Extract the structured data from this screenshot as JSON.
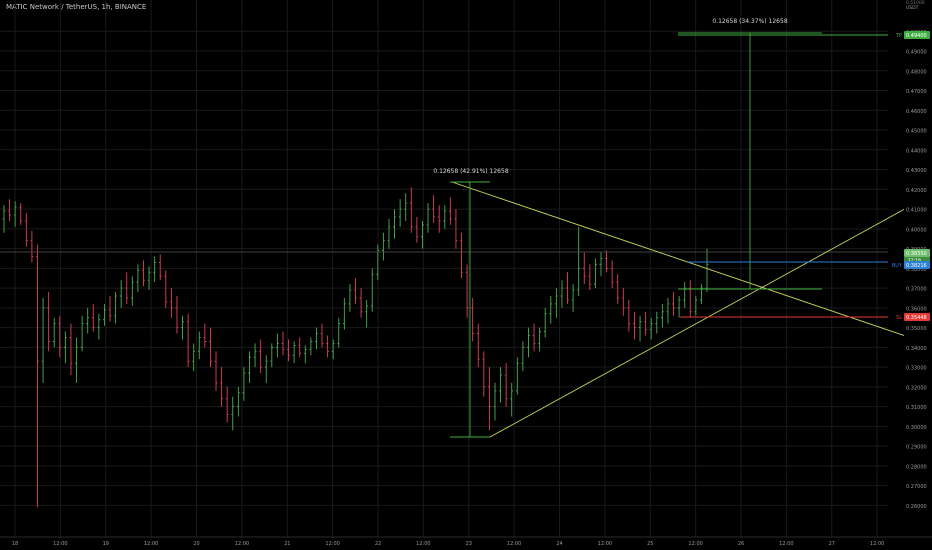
{
  "header": {
    "title": "MATIC Network / TetherUS, 1h, BINANCE"
  },
  "axis_header": {
    "unit_top": "0.51000",
    "unit_label": "USDT"
  },
  "colors": {
    "background": "#000000",
    "grid": "#1a1a1a",
    "up": "#4caf50",
    "down": "#e0405a",
    "trend": "#c9d25a",
    "measure": "#3fae3f",
    "buy": "#2b7fd6",
    "sl": "#e53935"
  },
  "chart_data": {
    "type": "candlestick",
    "interval": "1h",
    "ylim": [
      0.255,
      0.51
    ],
    "y_ticks": [
      "0.50000",
      "0.49000",
      "0.48000",
      "0.47000",
      "0.46000",
      "0.45000",
      "0.44000",
      "0.43000",
      "0.42000",
      "0.41000",
      "0.40000",
      "0.39000",
      "0.38000",
      "0.37000",
      "0.36000",
      "0.35000",
      "0.34000",
      "0.33000",
      "0.32000",
      "0.31000",
      "0.30000",
      "0.29000",
      "0.28000",
      "0.27000",
      "0.26000"
    ],
    "x_ticks": [
      "18",
      "12:00",
      "19",
      "12:00",
      "20",
      "12:00",
      "21",
      "12:00",
      "22",
      "12:00",
      "23",
      "12:00",
      "24",
      "12:00",
      "25",
      "12:00",
      "26",
      "12:00",
      "27",
      "12:00"
    ],
    "price_labels": [
      {
        "tag": "TP",
        "value": "0.49400"
      },
      {
        "tag": "",
        "value": "0.38350",
        "sub": "12:16"
      },
      {
        "tag": "BUY",
        "value": "0.38216"
      },
      {
        "tag": "SL",
        "value": "0.35448"
      }
    ],
    "annotations": [
      {
        "text": "0.12658 (42.91%) 12658"
      },
      {
        "text": "0.12658 (34.37%) 12658"
      }
    ],
    "candles": [
      [
        0.405,
        0.412,
        0.398,
        0.409
      ],
      [
        0.409,
        0.415,
        0.404,
        0.407
      ],
      [
        0.407,
        0.414,
        0.401,
        0.411
      ],
      [
        0.411,
        0.413,
        0.402,
        0.404
      ],
      [
        0.404,
        0.408,
        0.391,
        0.394
      ],
      [
        0.394,
        0.399,
        0.383,
        0.386
      ],
      [
        0.386,
        0.392,
        0.259,
        0.333
      ],
      [
        0.333,
        0.365,
        0.322,
        0.36
      ],
      [
        0.36,
        0.368,
        0.338,
        0.343
      ],
      [
        0.343,
        0.355,
        0.34,
        0.352
      ],
      [
        0.352,
        0.356,
        0.335,
        0.34
      ],
      [
        0.34,
        0.348,
        0.332,
        0.345
      ],
      [
        0.345,
        0.352,
        0.326,
        0.332
      ],
      [
        0.332,
        0.345,
        0.322,
        0.34
      ],
      [
        0.34,
        0.356,
        0.338,
        0.352
      ],
      [
        0.352,
        0.36,
        0.347,
        0.355
      ],
      [
        0.355,
        0.362,
        0.348,
        0.35
      ],
      [
        0.35,
        0.357,
        0.344,
        0.354
      ],
      [
        0.354,
        0.362,
        0.351,
        0.359
      ],
      [
        0.359,
        0.366,
        0.353,
        0.356
      ],
      [
        0.356,
        0.368,
        0.352,
        0.366
      ],
      [
        0.366,
        0.374,
        0.36,
        0.37
      ],
      [
        0.37,
        0.378,
        0.362,
        0.365
      ],
      [
        0.365,
        0.376,
        0.361,
        0.373
      ],
      [
        0.373,
        0.382,
        0.368,
        0.379
      ],
      [
        0.379,
        0.384,
        0.371,
        0.374
      ],
      [
        0.374,
        0.381,
        0.369,
        0.378
      ],
      [
        0.378,
        0.386,
        0.373,
        0.383
      ],
      [
        0.383,
        0.387,
        0.374,
        0.376
      ],
      [
        0.376,
        0.379,
        0.36,
        0.363
      ],
      [
        0.363,
        0.37,
        0.355,
        0.36
      ],
      [
        0.36,
        0.366,
        0.347,
        0.35
      ],
      [
        0.35,
        0.356,
        0.344,
        0.353
      ],
      [
        0.353,
        0.357,
        0.33,
        0.333
      ],
      [
        0.333,
        0.342,
        0.328,
        0.338
      ],
      [
        0.338,
        0.348,
        0.334,
        0.345
      ],
      [
        0.345,
        0.352,
        0.34,
        0.343
      ],
      [
        0.343,
        0.35,
        0.33,
        0.333
      ],
      [
        0.333,
        0.338,
        0.318,
        0.322
      ],
      [
        0.322,
        0.33,
        0.31,
        0.314
      ],
      [
        0.314,
        0.32,
        0.302,
        0.306
      ],
      [
        0.306,
        0.315,
        0.298,
        0.31
      ],
      [
        0.31,
        0.32,
        0.305,
        0.317
      ],
      [
        0.317,
        0.33,
        0.313,
        0.327
      ],
      [
        0.327,
        0.338,
        0.322,
        0.335
      ],
      [
        0.335,
        0.342,
        0.33,
        0.338
      ],
      [
        0.338,
        0.344,
        0.327,
        0.33
      ],
      [
        0.33,
        0.336,
        0.322,
        0.333
      ],
      [
        0.333,
        0.342,
        0.33,
        0.34
      ],
      [
        0.34,
        0.347,
        0.335,
        0.342
      ],
      [
        0.342,
        0.348,
        0.336,
        0.339
      ],
      [
        0.339,
        0.344,
        0.333,
        0.336
      ],
      [
        0.336,
        0.343,
        0.332,
        0.341
      ],
      [
        0.341,
        0.345,
        0.335,
        0.337
      ],
      [
        0.337,
        0.341,
        0.332,
        0.339
      ],
      [
        0.339,
        0.345,
        0.336,
        0.343
      ],
      [
        0.343,
        0.35,
        0.339,
        0.347
      ],
      [
        0.347,
        0.352,
        0.34,
        0.342
      ],
      [
        0.342,
        0.346,
        0.335,
        0.338
      ],
      [
        0.338,
        0.344,
        0.334,
        0.342
      ],
      [
        0.342,
        0.355,
        0.34,
        0.352
      ],
      [
        0.352,
        0.365,
        0.349,
        0.362
      ],
      [
        0.362,
        0.372,
        0.358,
        0.369
      ],
      [
        0.369,
        0.375,
        0.362,
        0.365
      ],
      [
        0.365,
        0.37,
        0.355,
        0.358
      ],
      [
        0.358,
        0.364,
        0.35,
        0.361
      ],
      [
        0.361,
        0.38,
        0.358,
        0.377
      ],
      [
        0.377,
        0.392,
        0.374,
        0.389
      ],
      [
        0.389,
        0.398,
        0.384,
        0.394
      ],
      [
        0.394,
        0.405,
        0.39,
        0.401
      ],
      [
        0.401,
        0.41,
        0.395,
        0.406
      ],
      [
        0.406,
        0.415,
        0.401,
        0.41
      ],
      [
        0.41,
        0.418,
        0.404,
        0.413
      ],
      [
        0.413,
        0.421,
        0.398,
        0.401
      ],
      [
        0.401,
        0.406,
        0.393,
        0.396
      ],
      [
        0.396,
        0.404,
        0.39,
        0.402
      ],
      [
        0.402,
        0.413,
        0.398,
        0.41
      ],
      [
        0.41,
        0.417,
        0.403,
        0.406
      ],
      [
        0.406,
        0.412,
        0.398,
        0.404
      ],
      [
        0.404,
        0.412,
        0.4,
        0.409
      ],
      [
        0.409,
        0.416,
        0.402,
        0.405
      ],
      [
        0.405,
        0.41,
        0.39,
        0.394
      ],
      [
        0.394,
        0.398,
        0.375,
        0.378
      ],
      [
        0.378,
        0.382,
        0.355,
        0.36
      ],
      [
        0.36,
        0.365,
        0.343,
        0.347
      ],
      [
        0.347,
        0.352,
        0.33,
        0.334
      ],
      [
        0.334,
        0.338,
        0.315,
        0.32
      ],
      [
        0.32,
        0.33,
        0.298,
        0.31
      ],
      [
        0.31,
        0.322,
        0.303,
        0.318
      ],
      [
        0.318,
        0.33,
        0.312,
        0.326
      ],
      [
        0.326,
        0.332,
        0.31,
        0.314
      ],
      [
        0.314,
        0.322,
        0.305,
        0.318
      ],
      [
        0.318,
        0.335,
        0.316,
        0.332
      ],
      [
        0.332,
        0.343,
        0.328,
        0.34
      ],
      [
        0.34,
        0.35,
        0.335,
        0.346
      ],
      [
        0.346,
        0.352,
        0.338,
        0.342
      ],
      [
        0.342,
        0.35,
        0.338,
        0.348
      ],
      [
        0.348,
        0.36,
        0.345,
        0.357
      ],
      [
        0.357,
        0.366,
        0.352,
        0.362
      ],
      [
        0.362,
        0.37,
        0.355,
        0.366
      ],
      [
        0.366,
        0.374,
        0.36,
        0.37
      ],
      [
        0.37,
        0.378,
        0.362,
        0.364
      ],
      [
        0.364,
        0.372,
        0.358,
        0.369
      ],
      [
        0.369,
        0.401,
        0.366,
        0.38
      ],
      [
        0.38,
        0.388,
        0.372,
        0.376
      ],
      [
        0.376,
        0.382,
        0.369,
        0.372
      ],
      [
        0.372,
        0.385,
        0.37,
        0.382
      ],
      [
        0.382,
        0.388,
        0.376,
        0.385
      ],
      [
        0.385,
        0.389,
        0.378,
        0.38
      ],
      [
        0.38,
        0.384,
        0.37,
        0.373
      ],
      [
        0.373,
        0.377,
        0.362,
        0.365
      ],
      [
        0.365,
        0.37,
        0.356,
        0.36
      ],
      [
        0.36,
        0.364,
        0.348,
        0.352
      ],
      [
        0.352,
        0.358,
        0.344,
        0.35
      ],
      [
        0.35,
        0.356,
        0.343,
        0.353
      ],
      [
        0.353,
        0.358,
        0.346,
        0.349
      ],
      [
        0.349,
        0.355,
        0.344,
        0.352
      ],
      [
        0.352,
        0.358,
        0.347,
        0.355
      ],
      [
        0.355,
        0.362,
        0.35,
        0.358
      ],
      [
        0.358,
        0.365,
        0.352,
        0.362
      ],
      [
        0.362,
        0.368,
        0.356,
        0.36
      ],
      [
        0.36,
        0.366,
        0.355,
        0.364
      ],
      [
        0.364,
        0.373,
        0.36,
        0.37
      ],
      [
        0.37,
        0.374,
        0.355,
        0.358
      ],
      [
        0.358,
        0.366,
        0.356,
        0.364
      ],
      [
        0.364,
        0.372,
        0.362,
        0.37
      ],
      [
        0.37,
        0.39,
        0.368,
        0.382
      ]
    ]
  }
}
